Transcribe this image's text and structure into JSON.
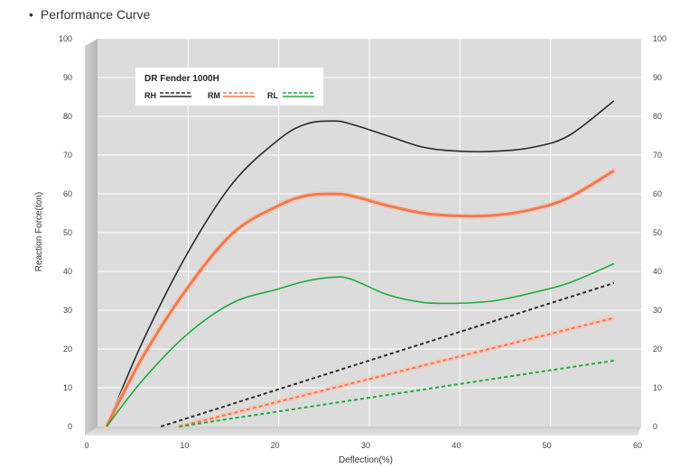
{
  "section_title": "Performance Curve",
  "bullet": "•",
  "chart_data": {
    "type": "line",
    "title": "",
    "xlabel": "Deflection(%)",
    "ylabel": "Reaction Force(ton)",
    "xlim": [
      0,
      60
    ],
    "ylim": [
      0,
      100
    ],
    "x_ticks": [
      0,
      10,
      20,
      30,
      40,
      50,
      60
    ],
    "y_ticks": [
      0,
      10,
      20,
      30,
      40,
      50,
      60,
      70,
      80,
      90,
      100
    ],
    "y2_ticks": [
      0,
      10,
      20,
      30,
      40,
      50,
      60,
      70,
      80,
      90,
      100
    ],
    "grid": true,
    "legend": {
      "title": "DR Fender 1000H",
      "placement": "top-left",
      "entries": [
        "RH",
        "RM",
        "RL"
      ]
    },
    "series": [
      {
        "name": "RH",
        "style": "solid",
        "color": "#2b2b2b",
        "x": [
          1,
          5,
          10,
          15,
          20,
          23,
          26,
          28,
          32,
          36,
          40,
          44,
          48,
          52,
          57
        ],
        "y": [
          0,
          22,
          45,
          63,
          74,
          78,
          78.8,
          78,
          75,
          72,
          71,
          71,
          72,
          75,
          84
        ]
      },
      {
        "name": "RM",
        "style": "solid",
        "color": "#ee7a52",
        "x": [
          1,
          5,
          10,
          15,
          20,
          23,
          26,
          28,
          32,
          36,
          40,
          44,
          48,
          52,
          57
        ],
        "y": [
          0,
          18,
          36,
          50,
          57,
          59.5,
          60,
          59.5,
          57,
          55,
          54.3,
          54.5,
          56,
          59,
          66
        ]
      },
      {
        "name": "RL",
        "style": "solid",
        "color": "#1faa3c",
        "x": [
          1,
          5,
          10,
          15,
          20,
          23,
          26,
          28,
          32,
          36,
          40,
          44,
          48,
          52,
          57
        ],
        "y": [
          0,
          12,
          24,
          32,
          35.5,
          37.5,
          38.5,
          38,
          34,
          32,
          31.8,
          32.5,
          34.5,
          37,
          42
        ]
      },
      {
        "name": "RH",
        "style": "dashed",
        "color": "#2b2b2b",
        "x": [
          7,
          57
        ],
        "y": [
          0,
          37
        ]
      },
      {
        "name": "RM",
        "style": "dashed",
        "color": "#ee7a52",
        "x": [
          9,
          57
        ],
        "y": [
          0,
          28
        ]
      },
      {
        "name": "RL",
        "style": "dashed",
        "color": "#1faa3c",
        "x": [
          9,
          57
        ],
        "y": [
          0,
          17
        ]
      }
    ]
  }
}
